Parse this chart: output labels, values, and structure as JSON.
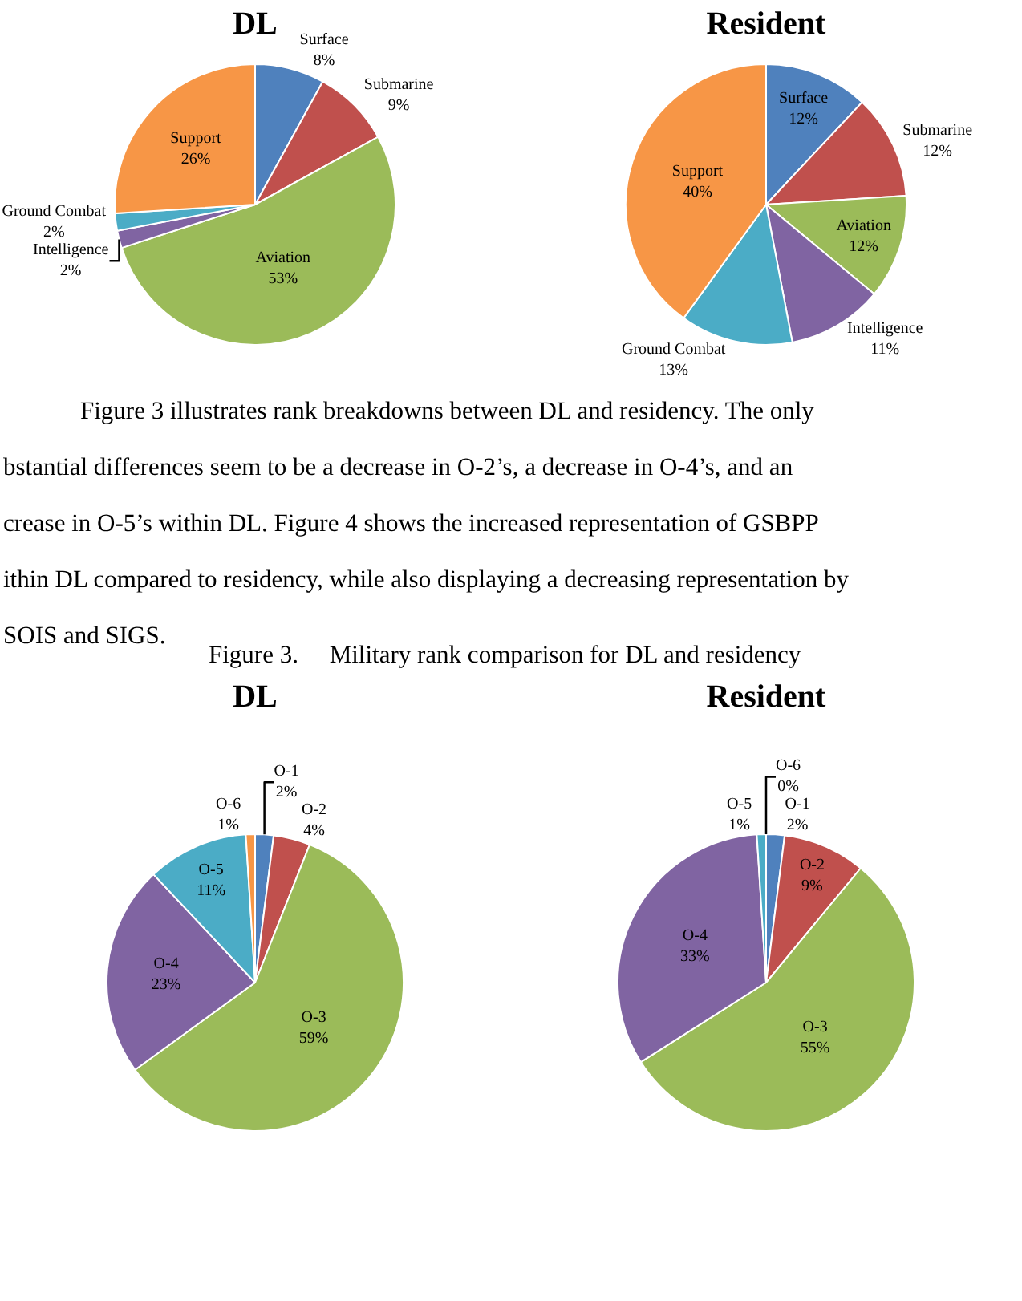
{
  "chart_data": [
    {
      "type": "pie",
      "title": "DL",
      "categories": [
        "Surface",
        "Submarine",
        "Aviation",
        "Intelligence",
        "Ground Combat",
        "Support"
      ],
      "values": [
        8,
        9,
        53,
        2,
        2,
        26
      ],
      "value_labels": [
        "8%",
        "9%",
        "53%",
        "2%",
        "2%",
        "26%"
      ],
      "colors": [
        "#4f81bd",
        "#c0504d",
        "#9bbb59",
        "#8064a2",
        "#4bacc6",
        "#f79646"
      ]
    },
    {
      "type": "pie",
      "title": "Resident",
      "categories": [
        "Surface",
        "Submarine",
        "Aviation",
        "Intelligence",
        "Ground Combat",
        "Support"
      ],
      "values": [
        12,
        12,
        12,
        11,
        13,
        40
      ],
      "value_labels": [
        "12%",
        "12%",
        "12%",
        "11%",
        "13%",
        "40%"
      ],
      "colors": [
        "#4f81bd",
        "#c0504d",
        "#9bbb59",
        "#8064a2",
        "#4bacc6",
        "#f79646"
      ],
      "annotations": [
        "Figure 3 illustrates rank breakdowns between DL and residency. The only",
        "bstantial differences seem to be a decrease in O-2’s, a decrease in O-4’s, and an",
        "crease in O-5’s within DL. Figure 4 shows the increased representation of GSBPP",
        "ithin DL compared to residency, while also displaying a decreasing representation by",
        "SOIS and SIGS."
      ]
    },
    {
      "type": "pie",
      "title": "DL",
      "categories": [
        "O-1",
        "O-2",
        "O-3",
        "O-4",
        "O-5",
        "O-6"
      ],
      "values": [
        2,
        4,
        59,
        23,
        11,
        1
      ],
      "value_labels": [
        "2%",
        "4%",
        "59%",
        "23%",
        "11%",
        "1%"
      ],
      "colors": [
        "#4f81bd",
        "#c0504d",
        "#9bbb59",
        "#8064a2",
        "#4bacc6",
        "#f79646"
      ],
      "annotations": [
        "Figure 3.     Military rank comparison for DL and residency"
      ]
    },
    {
      "type": "pie",
      "title": "Resident",
      "categories": [
        "O-1",
        "O-2",
        "O-3",
        "O-4",
        "O-5",
        "O-6"
      ],
      "values": [
        2,
        9,
        55,
        33,
        1,
        0
      ],
      "value_labels": [
        "2%",
        "9%",
        "55%",
        "33%",
        "1%",
        "0%"
      ],
      "colors": [
        "#4f81bd",
        "#c0504d",
        "#9bbb59",
        "#8064a2",
        "#4bacc6",
        "#f79646"
      ]
    }
  ]
}
